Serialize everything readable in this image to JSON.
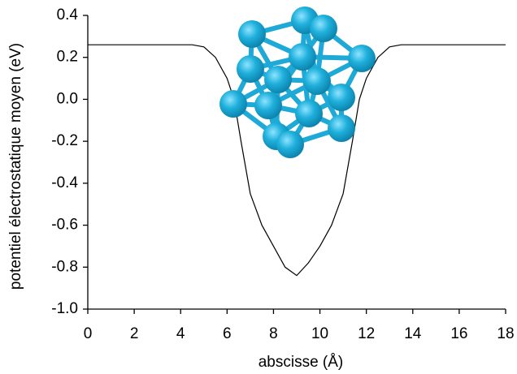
{
  "chart_data": {
    "type": "line",
    "xlabel": "abscisse (Å)",
    "ylabel": "potentiel électrostatique moyen (eV)",
    "x": [
      0,
      4.5,
      5.0,
      5.5,
      6.0,
      6.3,
      6.6,
      7.0,
      7.5,
      8.0,
      8.5,
      9.0,
      9.5,
      10.0,
      10.5,
      11.0,
      11.4,
      11.7,
      12.0,
      12.5,
      13.0,
      13.5,
      18
    ],
    "values": [
      0.26,
      0.26,
      0.25,
      0.2,
      0.1,
      0.0,
      -0.2,
      -0.45,
      -0.6,
      -0.7,
      -0.8,
      -0.84,
      -0.78,
      -0.7,
      -0.6,
      -0.45,
      -0.2,
      0.0,
      0.1,
      0.2,
      0.25,
      0.26,
      0.26
    ],
    "color": "#000000",
    "xlim": [
      0,
      18
    ],
    "xticks": [
      0,
      2,
      4,
      6,
      8,
      10,
      12,
      14,
      16,
      18
    ],
    "ylim": [
      -1.0,
      0.4
    ],
    "yticks": [
      {
        "value": -1,
        "label": "-1.0"
      },
      -0.8,
      -0.6,
      -0.4,
      -0.2,
      {
        "value": 0,
        "label": "0.0"
      },
      0.2,
      0.4
    ]
  }
}
